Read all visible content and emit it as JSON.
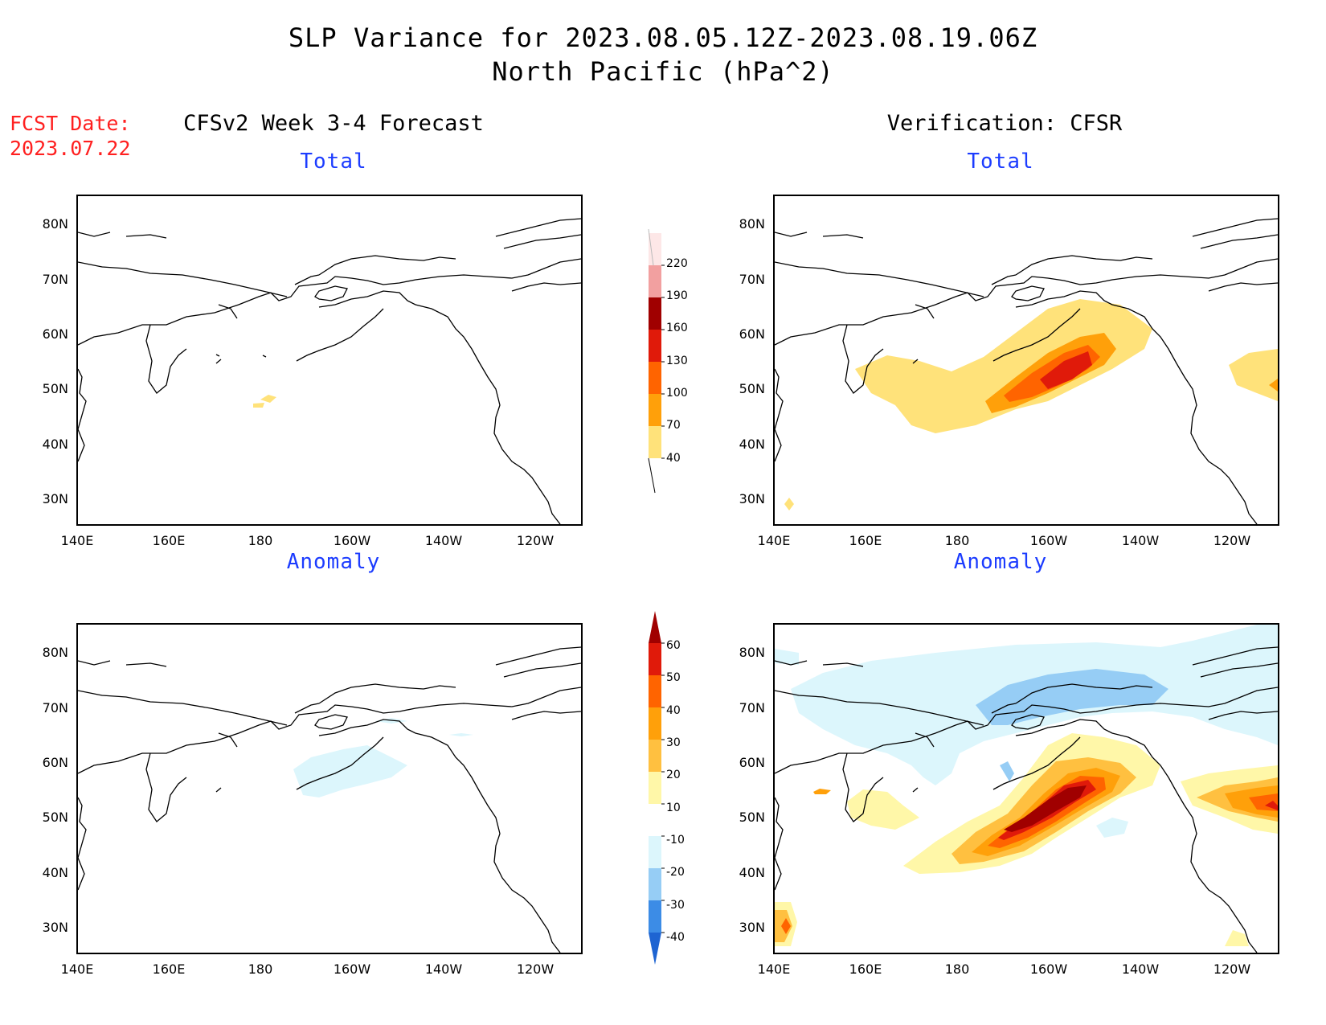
{
  "header": {
    "title_line1": "SLP Variance for 2023.08.05.12Z-2023.08.19.06Z",
    "title_line2": "North Pacific (hPa^2)",
    "fcst_label": "FCST Date:",
    "fcst_date": "2023.07.22"
  },
  "columns": {
    "left_title": "CFSv2 Week 3-4 Forecast",
    "right_title": "Verification: CFSR"
  },
  "panels": {
    "total_label": "Total",
    "anomaly_label": "Anomaly"
  },
  "axes": {
    "lat_ticks": [
      "80N",
      "70N",
      "60N",
      "50N",
      "40N",
      "30N"
    ],
    "lon_ticks": [
      "140E",
      "160E",
      "180",
      "160W",
      "140W",
      "120W"
    ]
  },
  "colorbars": {
    "total": {
      "levels": [
        "220",
        "190",
        "160",
        "130",
        "100",
        "70",
        "40"
      ],
      "colors": [
        "#fde7e7",
        "#f2a0a0",
        "#a00000",
        "#e01a0a",
        "#ff6400",
        "#ffa00a",
        "#ffe27a"
      ]
    },
    "anomaly": {
      "levels": [
        "60",
        "50",
        "40",
        "30",
        "20",
        "10",
        "-10",
        "-20",
        "-30",
        "-40"
      ],
      "colors": [
        "#a00000",
        "#e01a0a",
        "#ff6400",
        "#ffa00a",
        "#ffc040",
        "#fff7a8",
        "#ffffff",
        "#dcf6fc",
        "#96cdf5",
        "#3c8ce6",
        "#1e64d2"
      ]
    }
  }
}
